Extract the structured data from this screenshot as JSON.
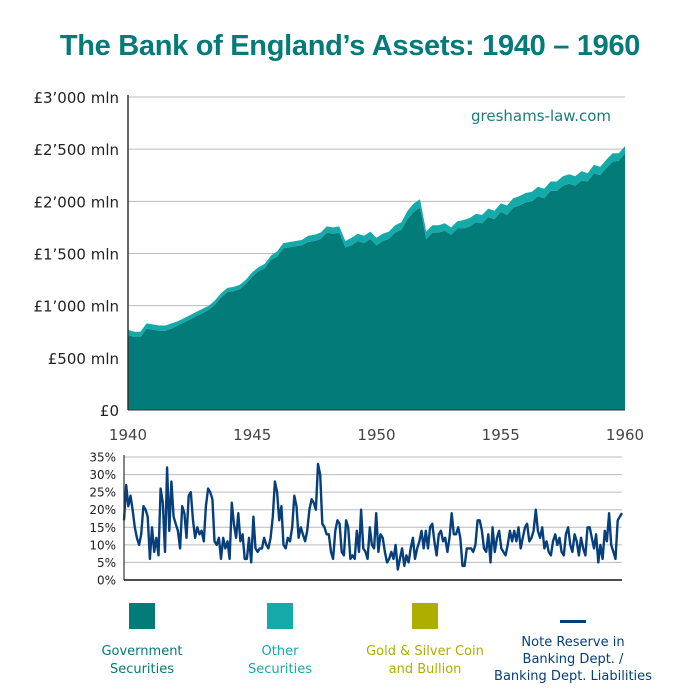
{
  "title": "The Bank of England’s Assets: 1940 – 1960",
  "watermark": "greshams-law.com",
  "colors": {
    "title": "#037b78",
    "government_securities": "#037b78",
    "other_securities": "#14aaa9",
    "gold_silver": "#aeae00",
    "note_reserve_line": "#063f7c",
    "gridline": "#bbbbbb",
    "axis": "#333333"
  },
  "upper_chart": {
    "y_ticks": [
      "£3’000 mln",
      "£2’500 mln",
      "£2’000 mln",
      "£1’500 mln",
      "£1’000 mln",
      "£500 mln",
      "£0"
    ],
    "x_ticks": [
      "1940",
      "1945",
      "1950",
      "1955",
      "1960"
    ]
  },
  "lower_chart": {
    "y_ticks": [
      "35%",
      "30%",
      "25%",
      "20%",
      "15%",
      "10%",
      "5%",
      "0%"
    ]
  },
  "legend": [
    {
      "label_line1": "Government",
      "label_line2": "Securities",
      "color": "#037b78",
      "type": "swatch"
    },
    {
      "label_line1": "Other",
      "label_line2": "Securities",
      "color": "#14aaa9",
      "type": "swatch"
    },
    {
      "label_line1": "Gold & Silver Coin",
      "label_line2": "and Bullion",
      "color": "#aeae00",
      "type": "swatch"
    },
    {
      "label_line1": "Note Reserve in",
      "label_line2": "Banking Dept. /",
      "label_line3": "Banking Dept. Liabilities",
      "color": "#063f7c",
      "type": "line"
    }
  ],
  "chart_data": [
    {
      "type": "area",
      "title": "The Bank of England’s Assets: 1940 – 1960",
      "xlabel": "",
      "ylabel": "£ mln",
      "xlim": [
        1940,
        1960
      ],
      "ylim": [
        0,
        3000
      ],
      "y_ticks": [
        0,
        500,
        1000,
        1500,
        2000,
        2500,
        3000
      ],
      "x_ticks": [
        1940,
        1945,
        1950,
        1955,
        1960
      ],
      "grid": true,
      "stacked": true,
      "x": [
        1940.0,
        1940.25,
        1940.5,
        1940.75,
        1941.0,
        1941.25,
        1941.5,
        1941.75,
        1942.0,
        1942.25,
        1942.5,
        1942.75,
        1943.0,
        1943.25,
        1943.5,
        1943.75,
        1944.0,
        1944.25,
        1944.5,
        1944.75,
        1945.0,
        1945.25,
        1945.5,
        1945.75,
        1946.0,
        1946.25,
        1946.5,
        1946.75,
        1947.0,
        1947.25,
        1947.5,
        1947.75,
        1948.0,
        1948.25,
        1948.5,
        1948.75,
        1949.0,
        1949.25,
        1949.5,
        1949.75,
        1950.0,
        1950.25,
        1950.5,
        1950.75,
        1951.0,
        1951.25,
        1951.5,
        1951.75,
        1952.0,
        1952.25,
        1952.5,
        1952.75,
        1953.0,
        1953.25,
        1953.5,
        1953.75,
        1954.0,
        1954.25,
        1954.5,
        1954.75,
        1955.0,
        1955.25,
        1955.5,
        1955.75,
        1956.0,
        1956.25,
        1956.5,
        1956.75,
        1957.0,
        1957.25,
        1957.5,
        1957.75,
        1958.0,
        1958.25,
        1958.5,
        1958.75,
        1959.0,
        1959.25,
        1959.5,
        1959.75,
        1960.0
      ],
      "series": [
        {
          "name": "Government Securities",
          "values": [
            720,
            700,
            700,
            780,
            770,
            760,
            760,
            780,
            810,
            840,
            870,
            900,
            930,
            960,
            1010,
            1080,
            1130,
            1140,
            1160,
            1210,
            1280,
            1330,
            1360,
            1440,
            1470,
            1550,
            1560,
            1570,
            1580,
            1610,
            1620,
            1640,
            1700,
            1690,
            1700,
            1560,
            1580,
            1620,
            1600,
            1640,
            1580,
            1620,
            1640,
            1700,
            1730,
            1830,
            1900,
            1940,
            1640,
            1700,
            1700,
            1720,
            1680,
            1740,
            1740,
            1760,
            1800,
            1790,
            1850,
            1830,
            1900,
            1870,
            1940,
            1960,
            1990,
            2000,
            2050,
            2030,
            2100,
            2100,
            2150,
            2170,
            2150,
            2200,
            2190,
            2270,
            2250,
            2320,
            2380,
            2390,
            2460
          ],
          "description": "Dominant dark teal area; roughly £700 mln in 1940 rising to ~£2'450 mln in 1960, with a sharp drop around early 1951"
        },
        {
          "name": "Other Securities",
          "values": [
            50,
            50,
            50,
            50,
            50,
            50,
            50,
            50,
            40,
            40,
            40,
            40,
            40,
            40,
            40,
            40,
            40,
            40,
            40,
            40,
            40,
            40,
            40,
            40,
            50,
            50,
            50,
            50,
            50,
            60,
            60,
            60,
            60,
            60,
            60,
            60,
            70,
            70,
            70,
            70,
            70,
            70,
            70,
            70,
            70,
            80,
            80,
            80,
            70,
            70,
            70,
            70,
            70,
            70,
            80,
            80,
            80,
            80,
            80,
            80,
            80,
            90,
            90,
            90,
            90,
            90,
            90,
            90,
            90,
            90,
            90,
            90,
            90,
            90,
            80,
            80,
            80,
            80,
            80,
            70,
            70
          ]
        },
        {
          "name": "Gold & Silver Coin and Bullion",
          "values": [
            0,
            0,
            0,
            0,
            0,
            0,
            0,
            0,
            0,
            0,
            0,
            0,
            0,
            0,
            0,
            0,
            0,
            0,
            0,
            0,
            0,
            0,
            0,
            0,
            0,
            0,
            0,
            0,
            0,
            0,
            0,
            0,
            0,
            0,
            0,
            0,
            0,
            0,
            0,
            0,
            0,
            0,
            0,
            0,
            0,
            0,
            0,
            0,
            0,
            0,
            0,
            0,
            0,
            0,
            0,
            0,
            0,
            0,
            0,
            0,
            0,
            0,
            0,
            0,
            0,
            0,
            0,
            0,
            0,
            0,
            0,
            0,
            0,
            0,
            0,
            0,
            0,
            0,
            0,
            0,
            0
          ]
        }
      ]
    },
    {
      "type": "line",
      "title": "Note Reserve in Banking Dept. / Banking Dept. Liabilities",
      "ylabel": "%",
      "xlim": [
        1940,
        1960
      ],
      "ylim": [
        0,
        35
      ],
      "y_ticks": [
        0,
        5,
        10,
        15,
        20,
        25,
        30,
        35
      ],
      "grid": true,
      "series": [
        {
          "name": "Note Reserve in Banking Dept. / Banking Dept. Liabilities",
          "values": [
            17,
            27,
            21,
            24,
            20,
            15,
            12,
            10,
            13,
            21,
            20,
            18,
            6,
            15,
            8,
            12,
            7,
            26,
            22,
            8,
            32,
            14,
            28,
            18,
            16,
            14,
            9,
            21,
            19,
            12,
            24,
            25,
            17,
            12,
            15,
            13,
            14,
            11,
            21,
            26,
            25,
            23,
            11,
            10,
            12,
            6,
            12,
            9,
            11,
            6,
            22,
            16,
            12,
            19,
            11,
            13,
            6,
            6,
            12,
            5,
            18,
            9,
            8,
            9,
            9,
            12,
            10,
            9,
            12,
            18,
            28,
            25,
            17,
            21,
            10,
            9,
            12,
            11,
            15,
            24,
            21,
            12,
            15,
            13,
            11,
            14,
            20,
            23,
            22,
            20,
            33,
            30,
            16,
            15,
            13,
            13,
            8,
            6,
            14,
            17,
            16,
            8,
            7,
            17,
            15,
            6,
            7,
            6,
            14,
            8,
            20,
            9,
            8,
            6,
            15,
            10,
            9,
            19,
            8,
            13,
            12,
            8,
            5,
            6,
            8,
            6,
            10,
            3,
            6,
            9,
            4,
            7,
            5,
            9,
            12,
            6,
            9,
            11,
            14,
            9,
            14,
            9,
            15,
            16,
            11,
            7,
            13,
            14,
            11,
            12,
            8,
            12,
            19,
            13,
            13,
            15,
            12,
            4,
            4,
            9,
            9,
            9,
            8,
            10,
            17,
            17,
            14,
            9,
            8,
            13,
            5,
            15,
            8,
            12,
            14,
            9,
            8,
            7,
            10,
            14,
            11,
            14,
            11,
            15,
            9,
            12,
            15,
            16,
            11,
            12,
            14,
            20,
            14,
            12,
            15,
            9,
            11,
            8,
            7,
            11,
            13,
            10,
            12,
            8,
            7,
            13,
            15,
            10,
            8,
            13,
            11,
            7,
            12,
            9,
            7,
            15,
            15,
            12,
            9,
            13,
            5,
            10,
            6,
            14,
            11,
            19,
            10,
            8,
            6,
            17,
            18,
            19
          ],
          "description": "Volatile line mostly between 3% and 33%; peaks ~32% in 1941, ~33% in 1948; mostly 5–20% after 1950"
        }
      ]
    }
  ]
}
